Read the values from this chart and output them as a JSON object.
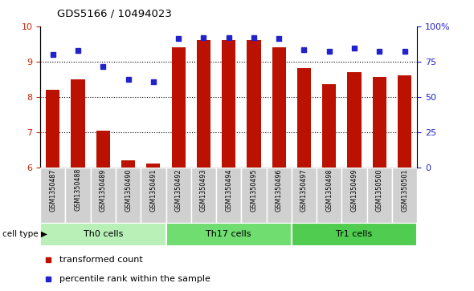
{
  "title": "GDS5166 / 10494023",
  "categories": [
    "GSM1350487",
    "GSM1350488",
    "GSM1350489",
    "GSM1350490",
    "GSM1350491",
    "GSM1350492",
    "GSM1350493",
    "GSM1350494",
    "GSM1350495",
    "GSM1350496",
    "GSM1350497",
    "GSM1350498",
    "GSM1350499",
    "GSM1350500",
    "GSM1350501"
  ],
  "bar_values": [
    8.2,
    8.5,
    7.05,
    6.2,
    6.1,
    9.4,
    9.6,
    9.6,
    9.6,
    9.4,
    8.8,
    8.35,
    8.7,
    8.55,
    8.6
  ],
  "dot_values": [
    9.2,
    9.3,
    8.85,
    8.5,
    8.43,
    9.65,
    9.67,
    9.67,
    9.67,
    9.65,
    9.33,
    9.28,
    9.38,
    9.28,
    9.28
  ],
  "cell_types": [
    {
      "label": "Th0 cells",
      "start": 0,
      "end": 5,
      "color": "#b8f0b8"
    },
    {
      "label": "Th17 cells",
      "start": 5,
      "end": 10,
      "color": "#70dd70"
    },
    {
      "label": "Tr1 cells",
      "start": 10,
      "end": 15,
      "color": "#50cc50"
    }
  ],
  "ylim_left": [
    6,
    10
  ],
  "ylim_right": [
    0,
    100
  ],
  "yticks_left": [
    6,
    7,
    8,
    9,
    10
  ],
  "yticks_right": [
    0,
    25,
    50,
    75,
    100
  ],
  "bar_color": "#bb1100",
  "dot_color": "#2222cc",
  "bar_width": 0.55,
  "tick_color_left": "#cc2200",
  "tick_color_right": "#2222cc",
  "legend_items": [
    "transformed count",
    "percentile rank within the sample"
  ],
  "legend_colors": [
    "#bb1100",
    "#2222cc"
  ],
  "cell_type_label": "cell type",
  "xlabel_bg": "#d0d0d0"
}
